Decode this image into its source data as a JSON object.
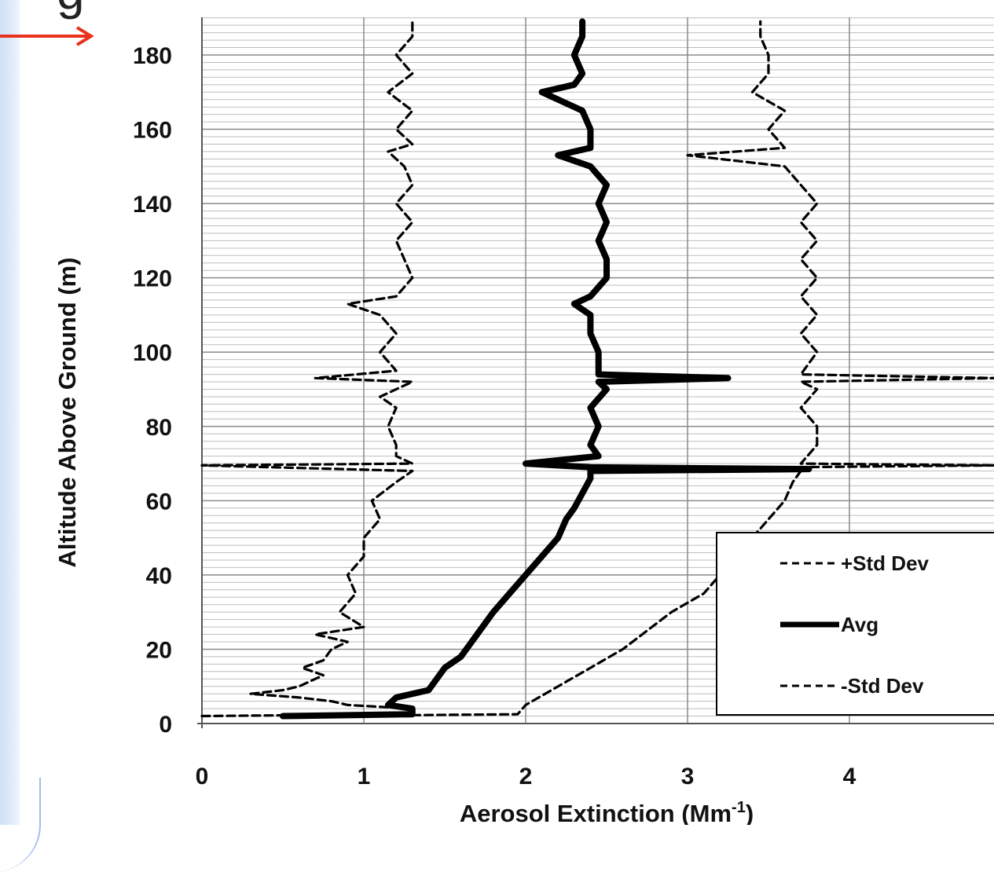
{
  "page": {
    "title_fragment": "g"
  },
  "colors": {
    "pointer_arrow": "#e8321e",
    "gridline": "#8a8a8a",
    "minor_gridline": "#bdbdbd",
    "series": "#000000"
  },
  "chart_data": {
    "type": "line",
    "title": "",
    "xlabel": "Aerosol Extinction (Mm",
    "xlabel_superscript": "-1",
    "xlabel_suffix": ")",
    "ylabel": "Altitude Above Ground (m)",
    "xlim": [
      0,
      4.9
    ],
    "ylim": [
      0,
      190
    ],
    "x_ticks": [
      0,
      1,
      2,
      3,
      4
    ],
    "y_ticks": [
      0,
      20,
      40,
      60,
      80,
      100,
      120,
      140,
      160,
      180
    ],
    "grid": true,
    "legend_position": "bottom-right",
    "legend": [
      "+Std Dev",
      "Avg",
      "-Std Dev"
    ],
    "series": [
      {
        "name": "+Std Dev",
        "style": "dashed",
        "points": [
          [
            0.0,
            2
          ],
          [
            1.2,
            2.5
          ],
          [
            1.3,
            3
          ],
          [
            1.3,
            4
          ],
          [
            0.9,
            5
          ],
          [
            0.8,
            6
          ],
          [
            0.6,
            7
          ],
          [
            0.3,
            8
          ],
          [
            0.5,
            9
          ],
          [
            0.6,
            10
          ],
          [
            0.75,
            13
          ],
          [
            0.62,
            15
          ],
          [
            0.75,
            17
          ],
          [
            0.8,
            20
          ],
          [
            0.9,
            22
          ],
          [
            0.7,
            24
          ],
          [
            1.0,
            26
          ],
          [
            0.85,
            30
          ],
          [
            0.95,
            35
          ],
          [
            0.9,
            40
          ],
          [
            1.0,
            45
          ],
          [
            1.0,
            50
          ],
          [
            1.1,
            55
          ],
          [
            1.05,
            60
          ],
          [
            1.2,
            65
          ],
          [
            1.3,
            68
          ],
          [
            0.0,
            69.5
          ],
          [
            1.3,
            70
          ],
          [
            1.2,
            72
          ],
          [
            1.2,
            75
          ],
          [
            1.15,
            80
          ],
          [
            1.2,
            85
          ],
          [
            1.1,
            88
          ],
          [
            1.3,
            92
          ],
          [
            0.7,
            93
          ],
          [
            1.2,
            95
          ],
          [
            1.1,
            100
          ],
          [
            1.2,
            105
          ],
          [
            1.1,
            110
          ],
          [
            0.9,
            113
          ],
          [
            1.2,
            115
          ],
          [
            1.3,
            120
          ],
          [
            1.25,
            125
          ],
          [
            1.2,
            130
          ],
          [
            1.3,
            135
          ],
          [
            1.2,
            140
          ],
          [
            1.3,
            145
          ],
          [
            1.25,
            150
          ],
          [
            1.15,
            154
          ],
          [
            1.3,
            156
          ],
          [
            1.2,
            160
          ],
          [
            1.3,
            165
          ],
          [
            1.15,
            170
          ],
          [
            1.3,
            175
          ],
          [
            1.2,
            180
          ],
          [
            1.3,
            185
          ],
          [
            1.3,
            189
          ]
        ]
      },
      {
        "name": "Avg",
        "style": "solid",
        "points": [
          [
            0.5,
            2
          ],
          [
            1.3,
            2.5
          ],
          [
            1.3,
            4
          ],
          [
            1.15,
            5
          ],
          [
            1.2,
            7
          ],
          [
            1.4,
            9
          ],
          [
            1.45,
            12
          ],
          [
            1.5,
            15
          ],
          [
            1.6,
            18
          ],
          [
            1.65,
            21
          ],
          [
            1.7,
            24
          ],
          [
            1.75,
            27
          ],
          [
            1.8,
            30
          ],
          [
            1.9,
            35
          ],
          [
            2.0,
            40
          ],
          [
            2.1,
            45
          ],
          [
            2.2,
            50
          ],
          [
            2.25,
            55
          ],
          [
            2.3,
            58
          ],
          [
            2.35,
            62
          ],
          [
            2.4,
            66
          ],
          [
            2.4,
            68
          ],
          [
            3.75,
            68.5
          ],
          [
            2.4,
            69
          ],
          [
            2.0,
            70
          ],
          [
            2.45,
            72
          ],
          [
            2.4,
            75
          ],
          [
            2.45,
            80
          ],
          [
            2.4,
            85
          ],
          [
            2.5,
            90
          ],
          [
            2.45,
            92
          ],
          [
            3.25,
            93
          ],
          [
            2.45,
            94
          ],
          [
            2.45,
            100
          ],
          [
            2.4,
            105
          ],
          [
            2.4,
            110
          ],
          [
            2.3,
            113
          ],
          [
            2.4,
            115
          ],
          [
            2.5,
            120
          ],
          [
            2.5,
            125
          ],
          [
            2.45,
            130
          ],
          [
            2.5,
            135
          ],
          [
            2.45,
            140
          ],
          [
            2.5,
            145
          ],
          [
            2.4,
            150
          ],
          [
            2.2,
            153
          ],
          [
            2.4,
            155
          ],
          [
            2.4,
            160
          ],
          [
            2.35,
            165
          ],
          [
            2.1,
            170
          ],
          [
            2.3,
            172
          ],
          [
            2.35,
            175
          ],
          [
            2.3,
            180
          ],
          [
            2.35,
            185
          ],
          [
            2.35,
            189
          ]
        ]
      },
      {
        "name": "-Std Dev",
        "style": "dashed",
        "points": [
          [
            0.6,
            2
          ],
          [
            1.95,
            2.5
          ],
          [
            2.0,
            5
          ],
          [
            2.2,
            10
          ],
          [
            2.4,
            15
          ],
          [
            2.6,
            20
          ],
          [
            2.75,
            25
          ],
          [
            2.9,
            30
          ],
          [
            3.1,
            35
          ],
          [
            3.2,
            40
          ],
          [
            3.3,
            45
          ],
          [
            3.4,
            50
          ],
          [
            3.5,
            55
          ],
          [
            3.6,
            60
          ],
          [
            3.65,
            65
          ],
          [
            3.7,
            68
          ],
          [
            3.6,
            69
          ],
          [
            4.9,
            69.5
          ],
          [
            3.7,
            70
          ],
          [
            3.8,
            75
          ],
          [
            3.8,
            80
          ],
          [
            3.7,
            85
          ],
          [
            3.8,
            90
          ],
          [
            3.7,
            92
          ],
          [
            4.9,
            93
          ],
          [
            3.7,
            94
          ],
          [
            3.8,
            100
          ],
          [
            3.7,
            105
          ],
          [
            3.8,
            110
          ],
          [
            3.7,
            115
          ],
          [
            3.8,
            120
          ],
          [
            3.7,
            125
          ],
          [
            3.8,
            130
          ],
          [
            3.7,
            135
          ],
          [
            3.8,
            140
          ],
          [
            3.7,
            145
          ],
          [
            3.6,
            150
          ],
          [
            3.0,
            153
          ],
          [
            3.6,
            155
          ],
          [
            3.5,
            160
          ],
          [
            3.6,
            165
          ],
          [
            3.4,
            170
          ],
          [
            3.5,
            175
          ],
          [
            3.5,
            180
          ],
          [
            3.45,
            185
          ],
          [
            3.45,
            189
          ]
        ]
      }
    ]
  }
}
